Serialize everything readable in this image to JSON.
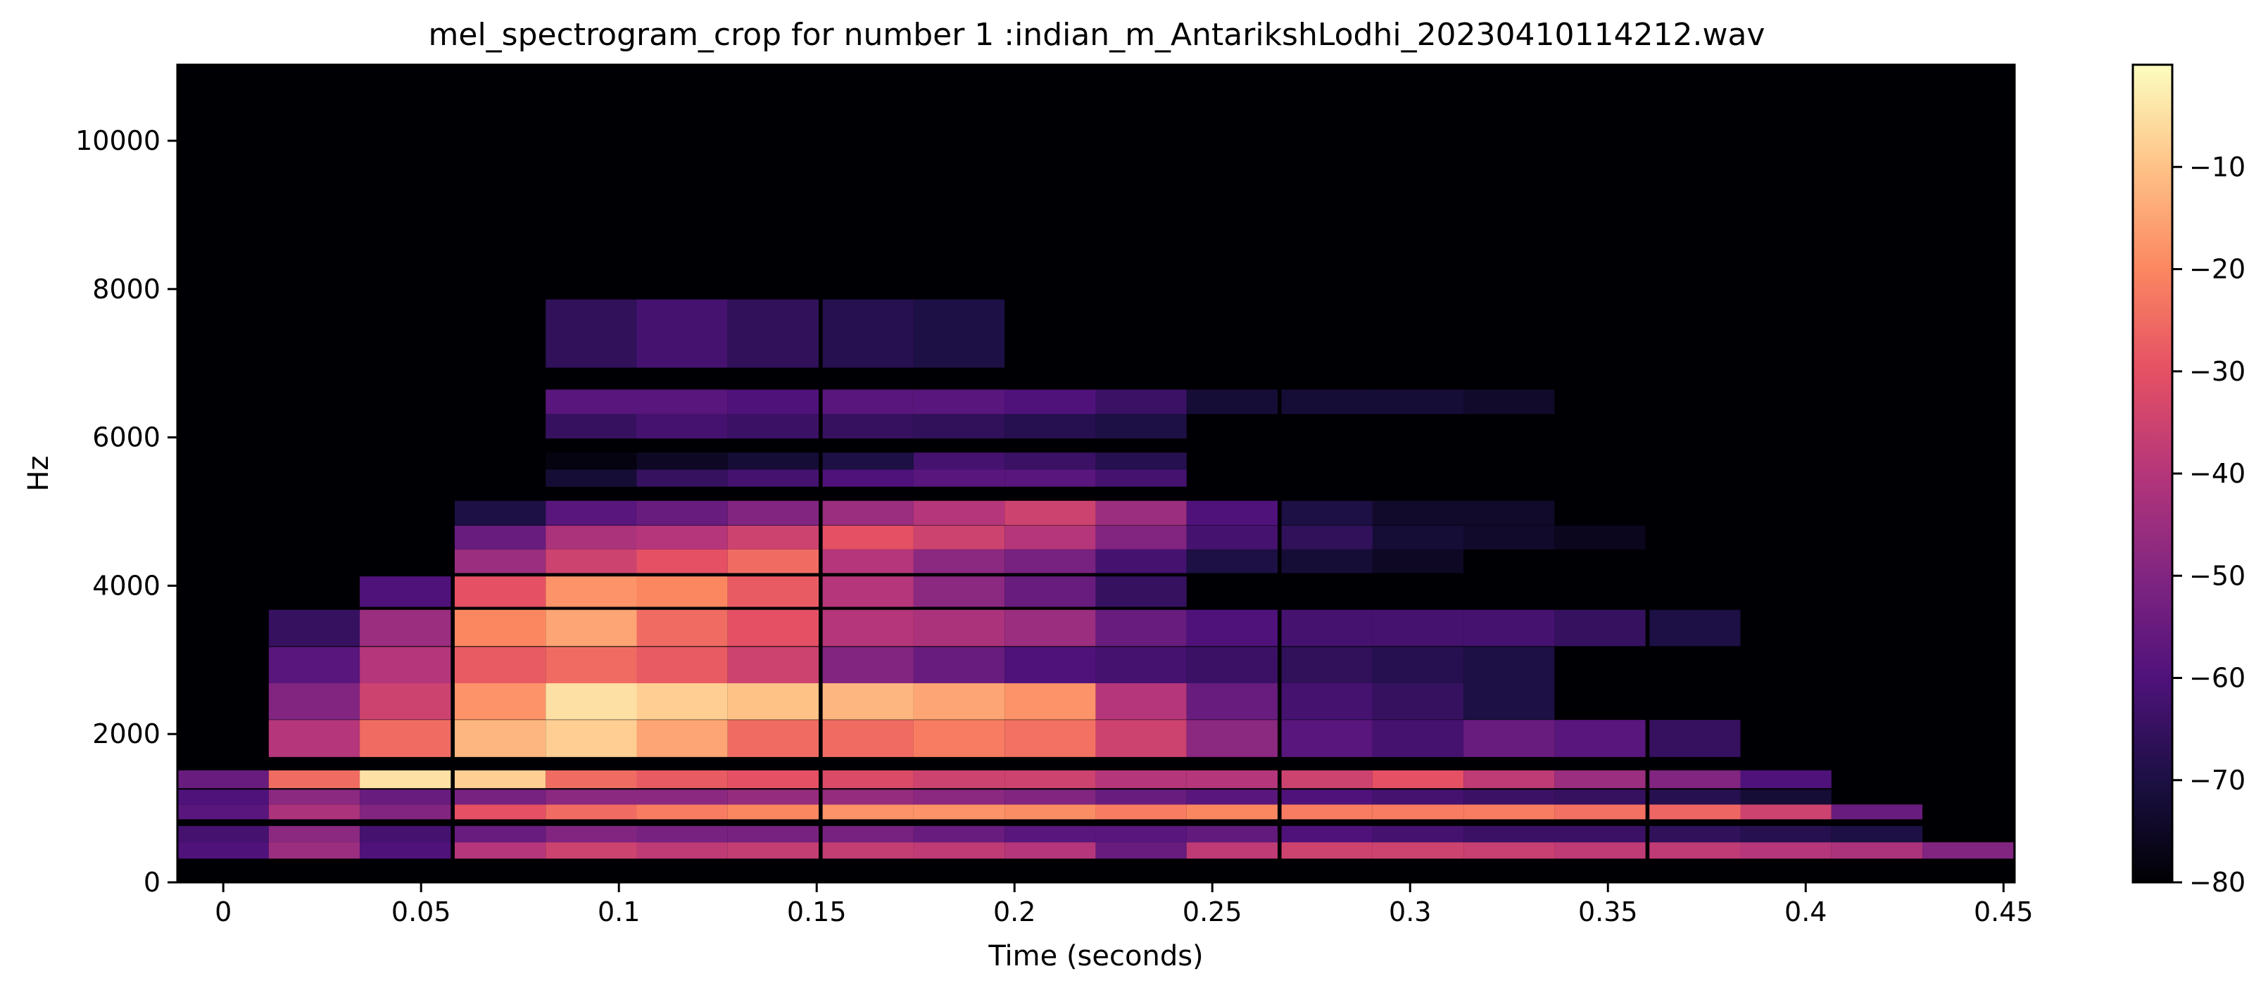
{
  "chart_data": {
    "type": "heatmap",
    "title": "mel_spectrogram_crop for number 1 :indian_m_AntarikshLodhi_20230410114212.wav",
    "xlabel": "Time (seconds)",
    "ylabel": "Hz",
    "xlim": [
      -0.0116,
      0.4528
    ],
    "ylim": [
      0,
      11025
    ],
    "x_ticks": [
      0,
      0.05,
      0.1,
      0.15,
      0.2,
      0.25,
      0.3,
      0.35,
      0.4,
      0.45
    ],
    "x_tick_labels": [
      "0",
      "0.05",
      "0.1",
      "0.15",
      "0.2",
      "0.25",
      "0.3",
      "0.35",
      "0.4",
      "0.45"
    ],
    "y_ticks": [
      0,
      2000,
      4000,
      6000,
      8000,
      10000
    ],
    "y_tick_labels": [
      "0",
      "2000",
      "4000",
      "6000",
      "8000",
      "10000"
    ],
    "frame_times": [
      0,
      0.023,
      0.046,
      0.07,
      0.093,
      0.116,
      0.139,
      0.163,
      0.186,
      0.209,
      0.232,
      0.255,
      0.279,
      0.302,
      0.325,
      0.348,
      0.372,
      0.395,
      0.418,
      0.441
    ],
    "colorbar": {
      "colormap": "magma",
      "range": [
        -80,
        0
      ],
      "ticks": [
        -10,
        -20,
        -30,
        -40,
        -50,
        -60,
        -70,
        -80
      ],
      "tick_labels": [
        "−10",
        "−20",
        "−30",
        "−40",
        "−50",
        "−60",
        "−70",
        "−80"
      ]
    },
    "background_db": -80,
    "bands": [
      {
        "hz": 430,
        "db": [
          -60,
          -45,
          -60,
          -40,
          -35,
          -38,
          -37,
          -37,
          -38,
          -40,
          -55,
          -38,
          -35,
          -35,
          -36,
          -38,
          -38,
          -40,
          -42,
          -50
        ]
      },
      {
        "hz": 650,
        "db": [
          -62,
          -48,
          -62,
          -55,
          -50,
          -52,
          -52,
          -52,
          -55,
          -58,
          -58,
          -56,
          -60,
          -62,
          -64,
          -64,
          -66,
          -68,
          -70,
          -80
        ]
      },
      {
        "hz": 950,
        "db": [
          -58,
          -42,
          -50,
          -30,
          -25,
          -22,
          -20,
          -18,
          -18,
          -19,
          -22,
          -20,
          -22,
          -22,
          -22,
          -24,
          -26,
          -35,
          -55,
          -80
        ]
      },
      {
        "hz": 1150,
        "db": [
          -60,
          -48,
          -55,
          -52,
          -48,
          -48,
          -46,
          -46,
          -48,
          -50,
          -55,
          -58,
          -60,
          -62,
          -64,
          -65,
          -68,
          -72,
          -80,
          -80
        ]
      },
      {
        "hz": 1390,
        "db": [
          -55,
          -25,
          -5,
          -8,
          -25,
          -28,
          -30,
          -32,
          -35,
          -35,
          -40,
          -40,
          -35,
          -30,
          -38,
          -45,
          -50,
          -60,
          -80,
          -80
        ]
      },
      {
        "hz": 1940,
        "db": [
          -80,
          -40,
          -25,
          -12,
          -8,
          -15,
          -25,
          -25,
          -22,
          -24,
          -35,
          -48,
          -58,
          -62,
          -55,
          -58,
          -65,
          -80,
          -80,
          -80
        ]
      },
      {
        "hz": 2440,
        "db": [
          -80,
          -50,
          -35,
          -18,
          -5,
          -8,
          -10,
          -12,
          -15,
          -18,
          -40,
          -55,
          -62,
          -65,
          -70,
          -80,
          -80,
          -80,
          -80,
          -80
        ]
      },
      {
        "hz": 2930,
        "db": [
          -80,
          -58,
          -40,
          -28,
          -25,
          -28,
          -35,
          -50,
          -55,
          -60,
          -62,
          -64,
          -66,
          -68,
          -70,
          -80,
          -80,
          -80,
          -80,
          -80
        ]
      },
      {
        "hz": 3430,
        "db": [
          -80,
          -65,
          -45,
          -20,
          -15,
          -25,
          -30,
          -40,
          -42,
          -45,
          -55,
          -60,
          -62,
          -62,
          -62,
          -65,
          -70,
          -80,
          -80,
          -80
        ]
      },
      {
        "hz": 3920,
        "db": [
          -80,
          -80,
          -60,
          -30,
          -18,
          -20,
          -28,
          -40,
          -48,
          -55,
          -65,
          -80,
          -80,
          -80,
          -80,
          -80,
          -80,
          -80,
          -80,
          -80
        ]
      },
      {
        "hz": 4330,
        "db": [
          -80,
          -80,
          -80,
          -45,
          -35,
          -30,
          -25,
          -40,
          -48,
          -52,
          -62,
          -70,
          -72,
          -75,
          -80,
          -80,
          -80,
          -80,
          -80,
          -80
        ]
      },
      {
        "hz": 4650,
        "db": [
          -80,
          -80,
          -80,
          -55,
          -42,
          -40,
          -35,
          -30,
          -35,
          -40,
          -50,
          -62,
          -66,
          -72,
          -74,
          -76,
          -80,
          -80,
          -80,
          -80
        ]
      },
      {
        "hz": 4980,
        "db": [
          -80,
          -80,
          -80,
          -70,
          -58,
          -55,
          -50,
          -45,
          -40,
          -35,
          -45,
          -60,
          -70,
          -74,
          -74,
          -80,
          -80,
          -80,
          -80,
          -80
        ]
      },
      {
        "hz": 5450,
        "db": [
          -80,
          -80,
          -80,
          -80,
          -72,
          -65,
          -62,
          -60,
          -58,
          -58,
          -62,
          -80,
          -80,
          -80,
          -80,
          -80,
          -80,
          -80,
          -80,
          -80
        ]
      },
      {
        "hz": 5680,
        "db": [
          -80,
          -80,
          -80,
          -80,
          -78,
          -75,
          -72,
          -70,
          -62,
          -64,
          -68,
          -80,
          -80,
          -80,
          -80,
          -80,
          -80,
          -80,
          -80,
          -80
        ]
      },
      {
        "hz": 6150,
        "db": [
          -80,
          -80,
          -80,
          -80,
          -65,
          -62,
          -64,
          -65,
          -66,
          -68,
          -70,
          -80,
          -80,
          -80,
          -80,
          -80,
          -80,
          -80,
          -80,
          -80
        ]
      },
      {
        "hz": 6480,
        "db": [
          -80,
          -80,
          -80,
          -80,
          -58,
          -58,
          -60,
          -58,
          -58,
          -60,
          -64,
          -72,
          -72,
          -72,
          -74,
          -80,
          -80,
          -80,
          -80,
          -80
        ]
      },
      {
        "hz": 7400,
        "db": [
          -80,
          -80,
          -80,
          -80,
          -66,
          -62,
          -66,
          -68,
          -70,
          -80,
          -80,
          -80,
          -80,
          -80,
          -80,
          -80,
          -80,
          -80,
          -80,
          -80
        ]
      }
    ]
  }
}
